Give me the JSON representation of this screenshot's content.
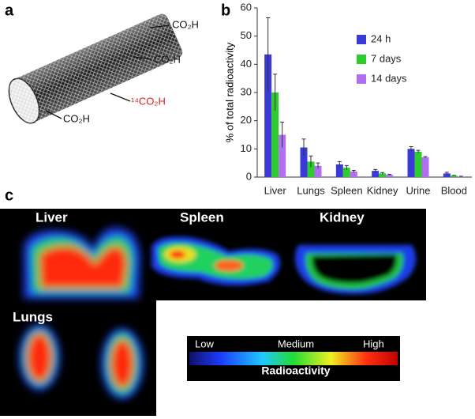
{
  "panel_labels": [
    "a",
    "b",
    "c"
  ],
  "molecule_labels": [
    "CO₂H",
    "CO₂H",
    "¹⁴CO₂H",
    "CO₂H"
  ],
  "chart_data": {
    "type": "bar",
    "y_label": "% of total radioactivity",
    "categories": [
      "Liver",
      "Lungs",
      "Spleen",
      "Kidney",
      "Urine",
      "Blood"
    ],
    "series": [
      {
        "name": "24 h",
        "color": "#3a3ad6",
        "values": [
          43.5,
          10.5,
          4.5,
          2.2,
          10,
          1.3
        ],
        "errors": [
          13,
          3,
          1,
          0.5,
          0.8,
          0.4
        ]
      },
      {
        "name": "7 days",
        "color": "#2ecc2e",
        "values": [
          30,
          5.5,
          3.3,
          1.3,
          9,
          0.5
        ],
        "errors": [
          6.5,
          2,
          0.8,
          0.3,
          0.5,
          0.1
        ]
      },
      {
        "name": "14 days",
        "color": "#b06ef0",
        "values": [
          15,
          4,
          2,
          0.8,
          7,
          0.2
        ],
        "errors": [
          4.5,
          1,
          0.4,
          0.2,
          0.3,
          0.1
        ]
      }
    ],
    "ylim": [
      0,
      60
    ],
    "yticks": [
      0,
      10,
      20,
      30,
      40,
      50,
      60
    ],
    "grid": false,
    "legend": "upper-right"
  },
  "images": {
    "labels": [
      "Liver",
      "Spleen",
      "Kidney",
      "Lungs"
    ]
  },
  "colorbar": {
    "labels": [
      "Low",
      "Medium",
      "High"
    ],
    "title": "Radioactivity"
  }
}
